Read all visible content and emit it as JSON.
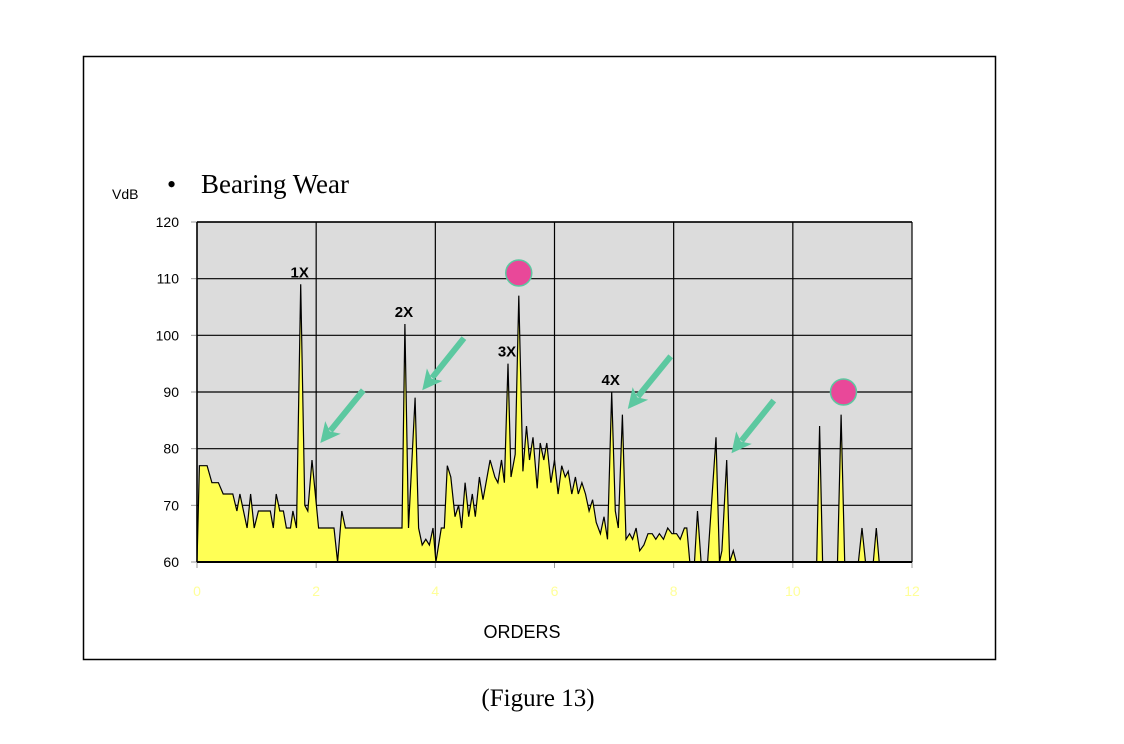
{
  "caption": "(Figure 13)",
  "chart_data": {
    "type": "area",
    "title": "Bearing Wear",
    "title_bullet": "•",
    "xlabel": "ORDERS",
    "ylabel": "VdB",
    "xlim": [
      0,
      12
    ],
    "ylim": [
      60,
      120
    ],
    "x_ticks": [
      0,
      2,
      4,
      6,
      8,
      10,
      12
    ],
    "y_ticks": [
      60,
      70,
      80,
      90,
      100,
      110,
      120
    ],
    "grid": true,
    "legend": "none",
    "colors": {
      "fill": "#ffff55",
      "line": "#000000",
      "plot_bg": "#dcdcdc",
      "x_tick_labels": "#ffff99",
      "marker": "#e94899",
      "marker_edge": "#5cc8a0",
      "arrow": "#5cc8a0"
    },
    "series": [
      {
        "x": [
          0,
          0.04,
          0.07,
          0.17,
          0.25,
          0.3,
          0.36,
          0.44,
          0.6,
          0.67,
          0.72,
          0.84,
          0.9,
          0.96,
          1.03,
          1.23,
          1.28,
          1.33,
          1.39,
          1.45,
          1.5,
          1.57,
          1.61,
          1.67,
          1.74,
          1.81,
          1.86,
          1.93,
          2.04,
          2.3,
          2.36,
          2.43,
          2.49,
          3.44,
          3.49,
          3.55,
          3.66,
          3.72,
          3.78,
          3.84,
          3.9,
          3.96,
          4.01,
          4.1,
          4.15,
          4.2,
          4.26,
          4.33,
          4.39,
          4.44,
          4.5,
          4.56,
          4.62,
          4.67,
          4.74,
          4.8,
          4.92,
          5.0,
          5.05,
          5.11,
          5.16,
          5.22,
          5.27,
          5.34,
          5.4,
          5.47,
          5.53,
          5.58,
          5.64,
          5.71,
          5.76,
          5.82,
          5.87,
          5.94,
          6.0,
          6.06,
          6.12,
          6.18,
          6.23,
          6.29,
          6.35,
          6.4,
          6.46,
          6.52,
          6.58,
          6.64,
          6.7,
          6.77,
          6.83,
          6.89,
          6.96,
          7.02,
          7.07,
          7.14,
          7.2,
          7.26,
          7.31,
          7.37,
          7.43,
          7.5,
          7.57,
          7.64,
          7.7,
          7.76,
          7.83,
          7.9,
          7.97,
          8.05,
          8.11,
          8.18,
          8.22,
          8.27,
          8.35,
          8.4,
          8.46,
          8.57,
          8.71,
          8.77,
          8.81,
          8.89,
          8.94,
          9.0,
          9.05,
          10.4,
          10.45,
          10.5,
          10.75,
          10.81,
          10.87,
          11.1,
          11.16,
          11.22,
          11.35,
          11.4,
          11.45,
          12
        ],
        "y": [
          60,
          77,
          77,
          77,
          74,
          74,
          74,
          72,
          72,
          69,
          72,
          66,
          72,
          66,
          69,
          69,
          66,
          72,
          69,
          69,
          66,
          66,
          69,
          66,
          109,
          70,
          69,
          78,
          66,
          66,
          60,
          69,
          66,
          66,
          102,
          66,
          89,
          66,
          63,
          64,
          63,
          66,
          60,
          66,
          66,
          77,
          75,
          68,
          70,
          66,
          74,
          68,
          72,
          68,
          75,
          71,
          78,
          75,
          74,
          78,
          74,
          95,
          75,
          79,
          107,
          76,
          84,
          78,
          82,
          73,
          81,
          78,
          81,
          74,
          78,
          72,
          77,
          75,
          76,
          72,
          75,
          72,
          74,
          72,
          69,
          71,
          67,
          65,
          68,
          64,
          90,
          69,
          66,
          86,
          64,
          65,
          64,
          66,
          62,
          63,
          65,
          65,
          64,
          65,
          64,
          66,
          65,
          65,
          64,
          66,
          66,
          60,
          60,
          69,
          60,
          60,
          82,
          60,
          62,
          78,
          60,
          62,
          60,
          60,
          84,
          60,
          60,
          86,
          60,
          60,
          66,
          60,
          60,
          66,
          60,
          60
        ]
      }
    ],
    "peak_labels": [
      {
        "text": "1X",
        "x": 1.74,
        "y": 109
      },
      {
        "text": "2X",
        "x": 3.49,
        "y": 102
      },
      {
        "text": "3X",
        "x": 5.22,
        "y": 95
      },
      {
        "text": "4X",
        "x": 6.96,
        "y": 90
      }
    ],
    "markers": [
      {
        "x": 5.4,
        "y": 111
      },
      {
        "x": 10.85,
        "y": 90
      }
    ],
    "arrows": [
      {
        "from": [
          2.79,
          90.3
        ],
        "to": [
          2.07,
          81
        ]
      },
      {
        "from": [
          4.48,
          99.5
        ],
        "to": [
          3.78,
          90.3
        ]
      },
      {
        "from": [
          7.95,
          96.3
        ],
        "to": [
          7.23,
          87
        ]
      },
      {
        "from": [
          9.68,
          88.5
        ],
        "to": [
          8.97,
          79.2
        ]
      }
    ]
  }
}
